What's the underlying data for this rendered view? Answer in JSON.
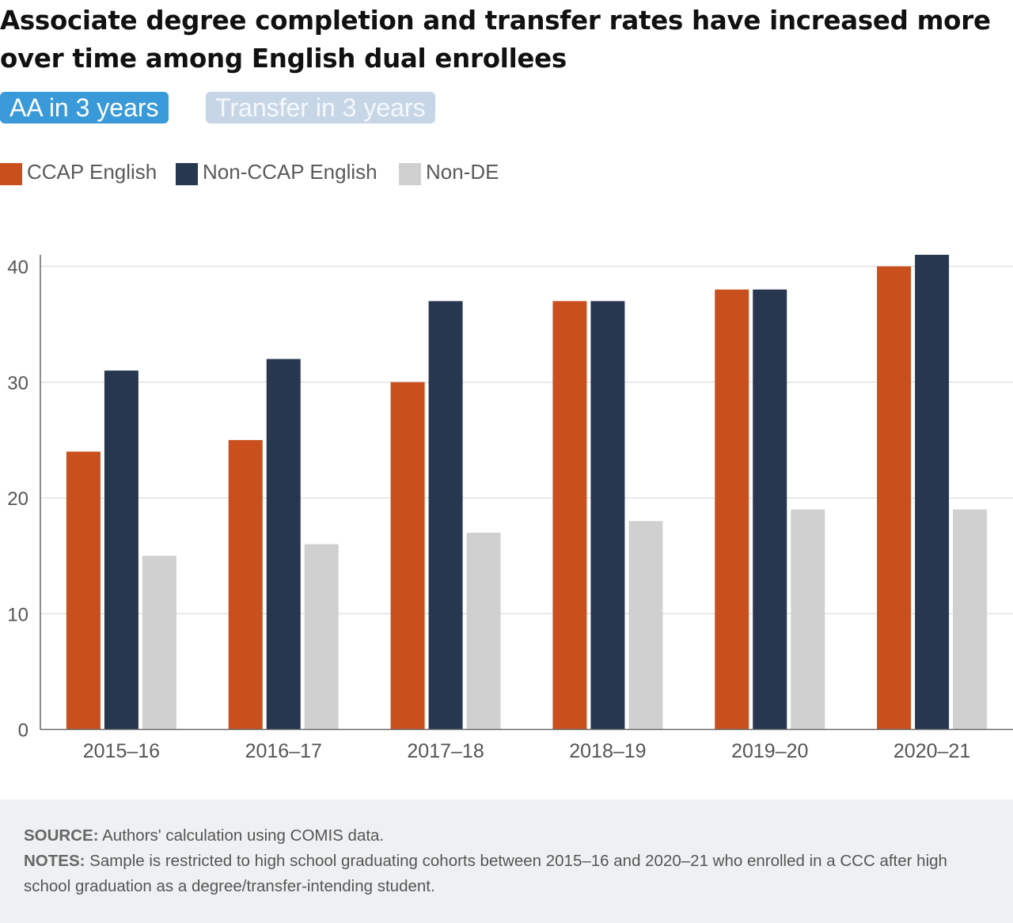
{
  "title": "Associate degree completion and transfer rates have increased more over time among English dual enrollees",
  "tabs": [
    {
      "label": "AA in 3 years",
      "active": true
    },
    {
      "label": "Transfer in 3 years",
      "active": false
    }
  ],
  "footer": {
    "source_label": "SOURCE:",
    "source_text": "Authors' calculation using COMIS data.",
    "notes_label": "NOTES:",
    "notes_text": "Sample is restricted to high school graduating cohorts between 2015–16 and 2020–21 who enrolled in a CCC after high school graduation as a degree/transfer-intending student."
  },
  "chart_data": {
    "type": "bar",
    "categories": [
      "2015–16",
      "2016–17",
      "2017–18",
      "2018–19",
      "2019–20",
      "2020–21"
    ],
    "series": [
      {
        "name": "CCAP English",
        "color": "#c9501c",
        "values": [
          24,
          25,
          30,
          37,
          38,
          40
        ]
      },
      {
        "name": "Non-CCAP English",
        "color": "#283750",
        "values": [
          31,
          32,
          37,
          37,
          38,
          41
        ]
      },
      {
        "name": "Non-DE",
        "color": "#d0d0d0",
        "values": [
          15,
          16,
          17,
          18,
          19,
          19
        ]
      }
    ],
    "ylim": [
      0,
      41
    ],
    "yticks": [
      0,
      10,
      20,
      30,
      40
    ],
    "grid": true,
    "legend_position": "top-left",
    "title": "",
    "xlabel": "",
    "ylabel": ""
  }
}
